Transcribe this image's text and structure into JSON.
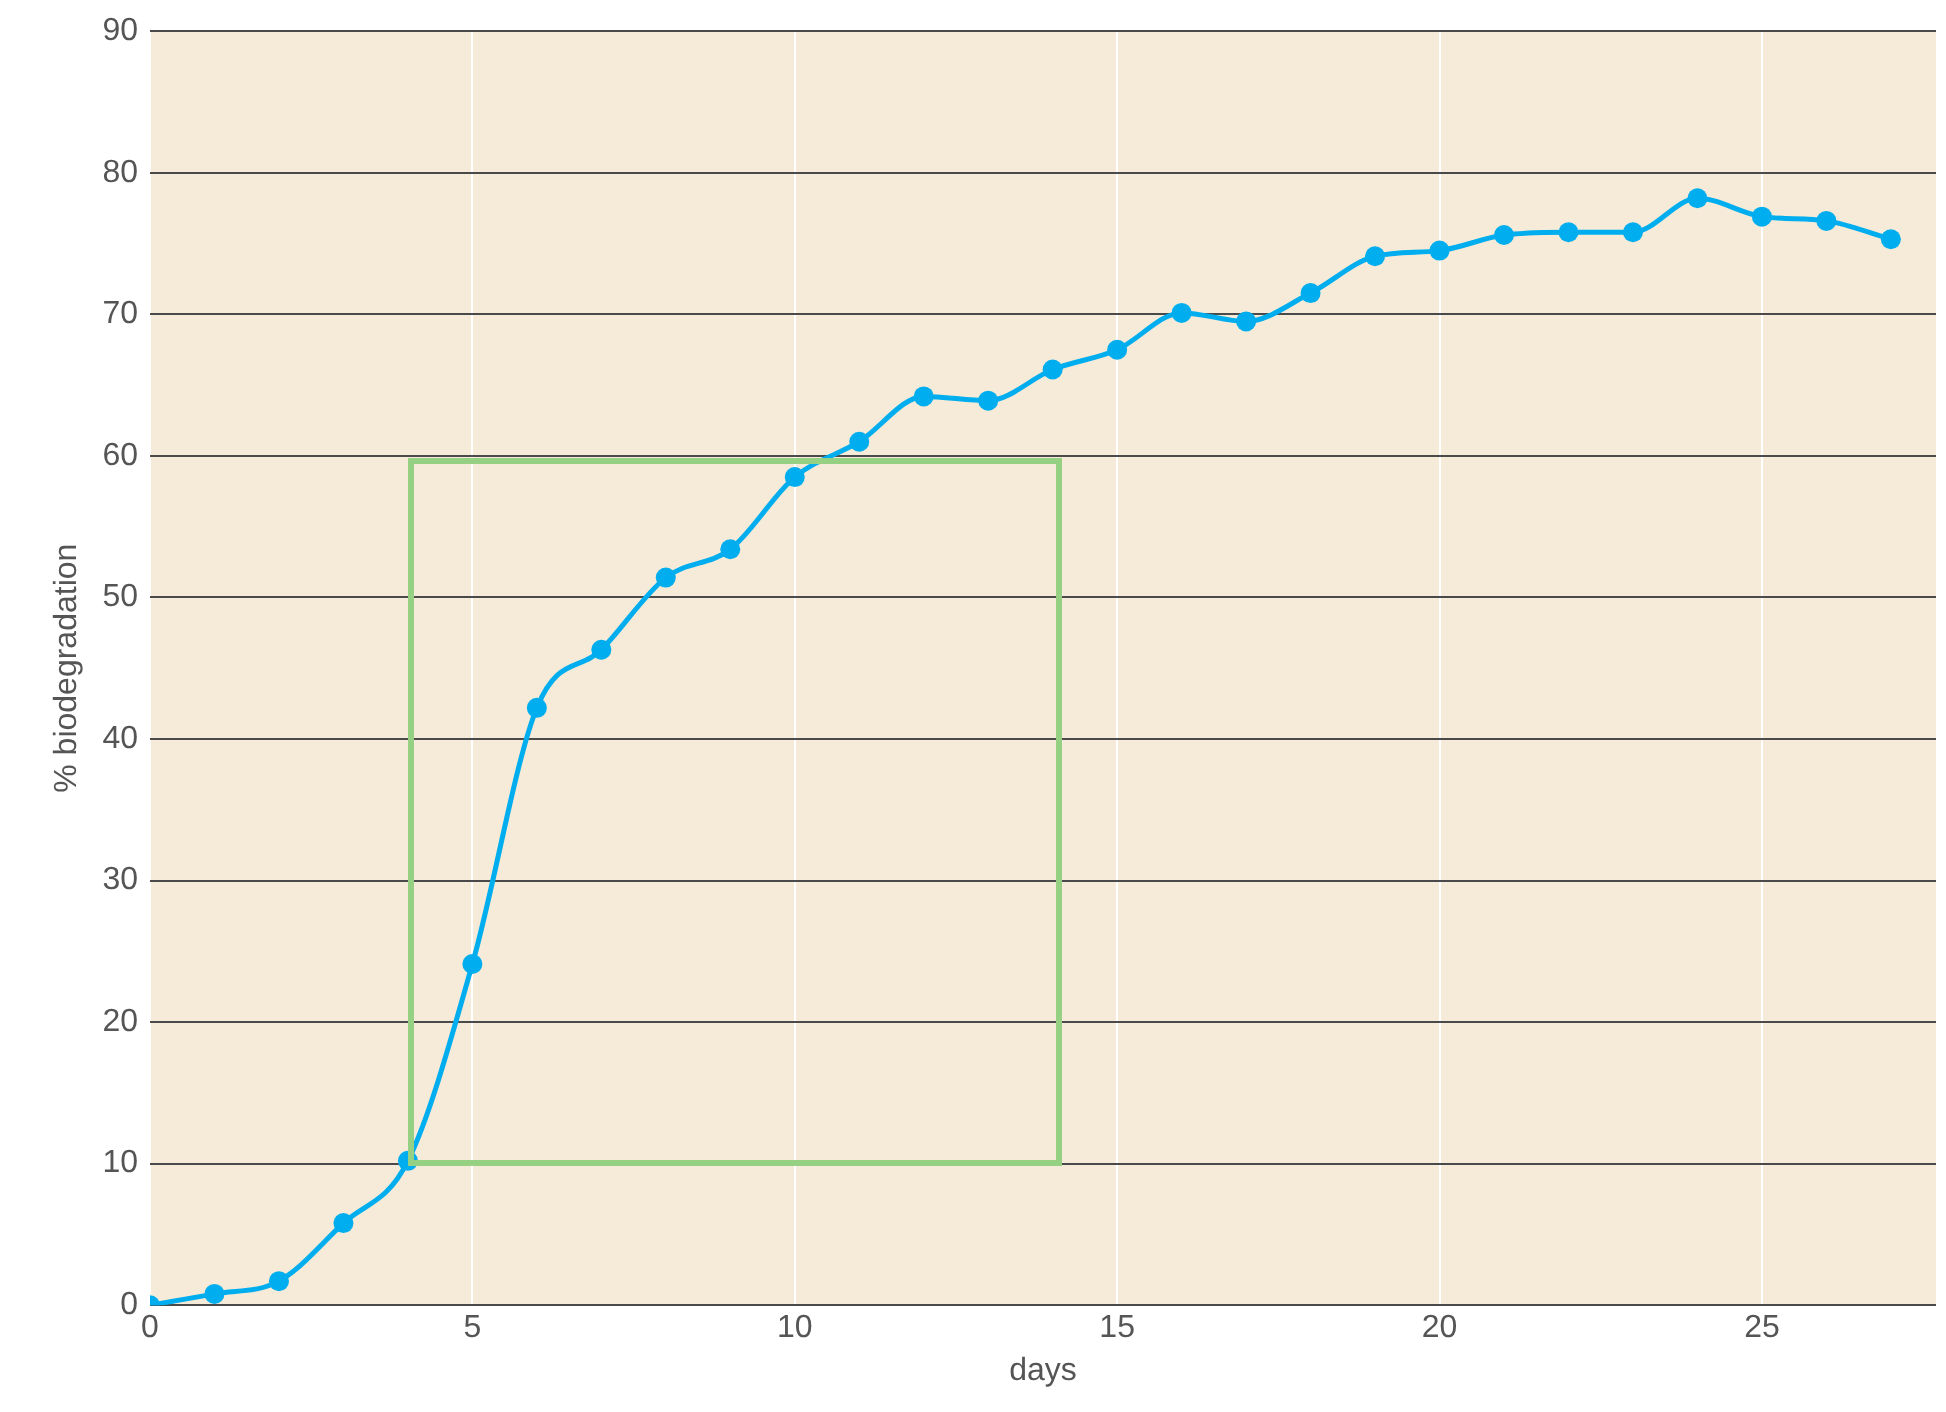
{
  "chart_data": {
    "type": "line",
    "xlabel": "days",
    "ylabel": "% biodegradation",
    "xlim": [
      0,
      27.7
    ],
    "xticks": [
      0,
      5,
      10,
      15,
      20,
      25
    ],
    "ylim": [
      0,
      90
    ],
    "yticks": [
      0,
      10,
      20,
      30,
      40,
      50,
      60,
      70,
      80,
      90
    ],
    "grid": true,
    "legend": false,
    "marker": "circle",
    "series": [
      {
        "color": "#00aeef",
        "x": [
          0,
          1,
          2,
          3,
          4,
          5,
          6,
          7,
          8,
          9,
          10,
          11,
          12,
          13,
          14,
          15,
          16,
          17,
          18,
          19,
          20,
          21,
          22,
          23,
          24,
          25,
          26,
          27
        ],
        "values": [
          0,
          0.8,
          1.7,
          5.8,
          10.2,
          24.1,
          42.2,
          46.3,
          51.4,
          53.4,
          58.5,
          61,
          64.2,
          63.9,
          66.1,
          67.5,
          70.1,
          69.5,
          71.5,
          74.1,
          74.5,
          75.6,
          75.8,
          75.8,
          78.2,
          76.9,
          76.6,
          75.3
        ]
      }
    ]
  }
}
